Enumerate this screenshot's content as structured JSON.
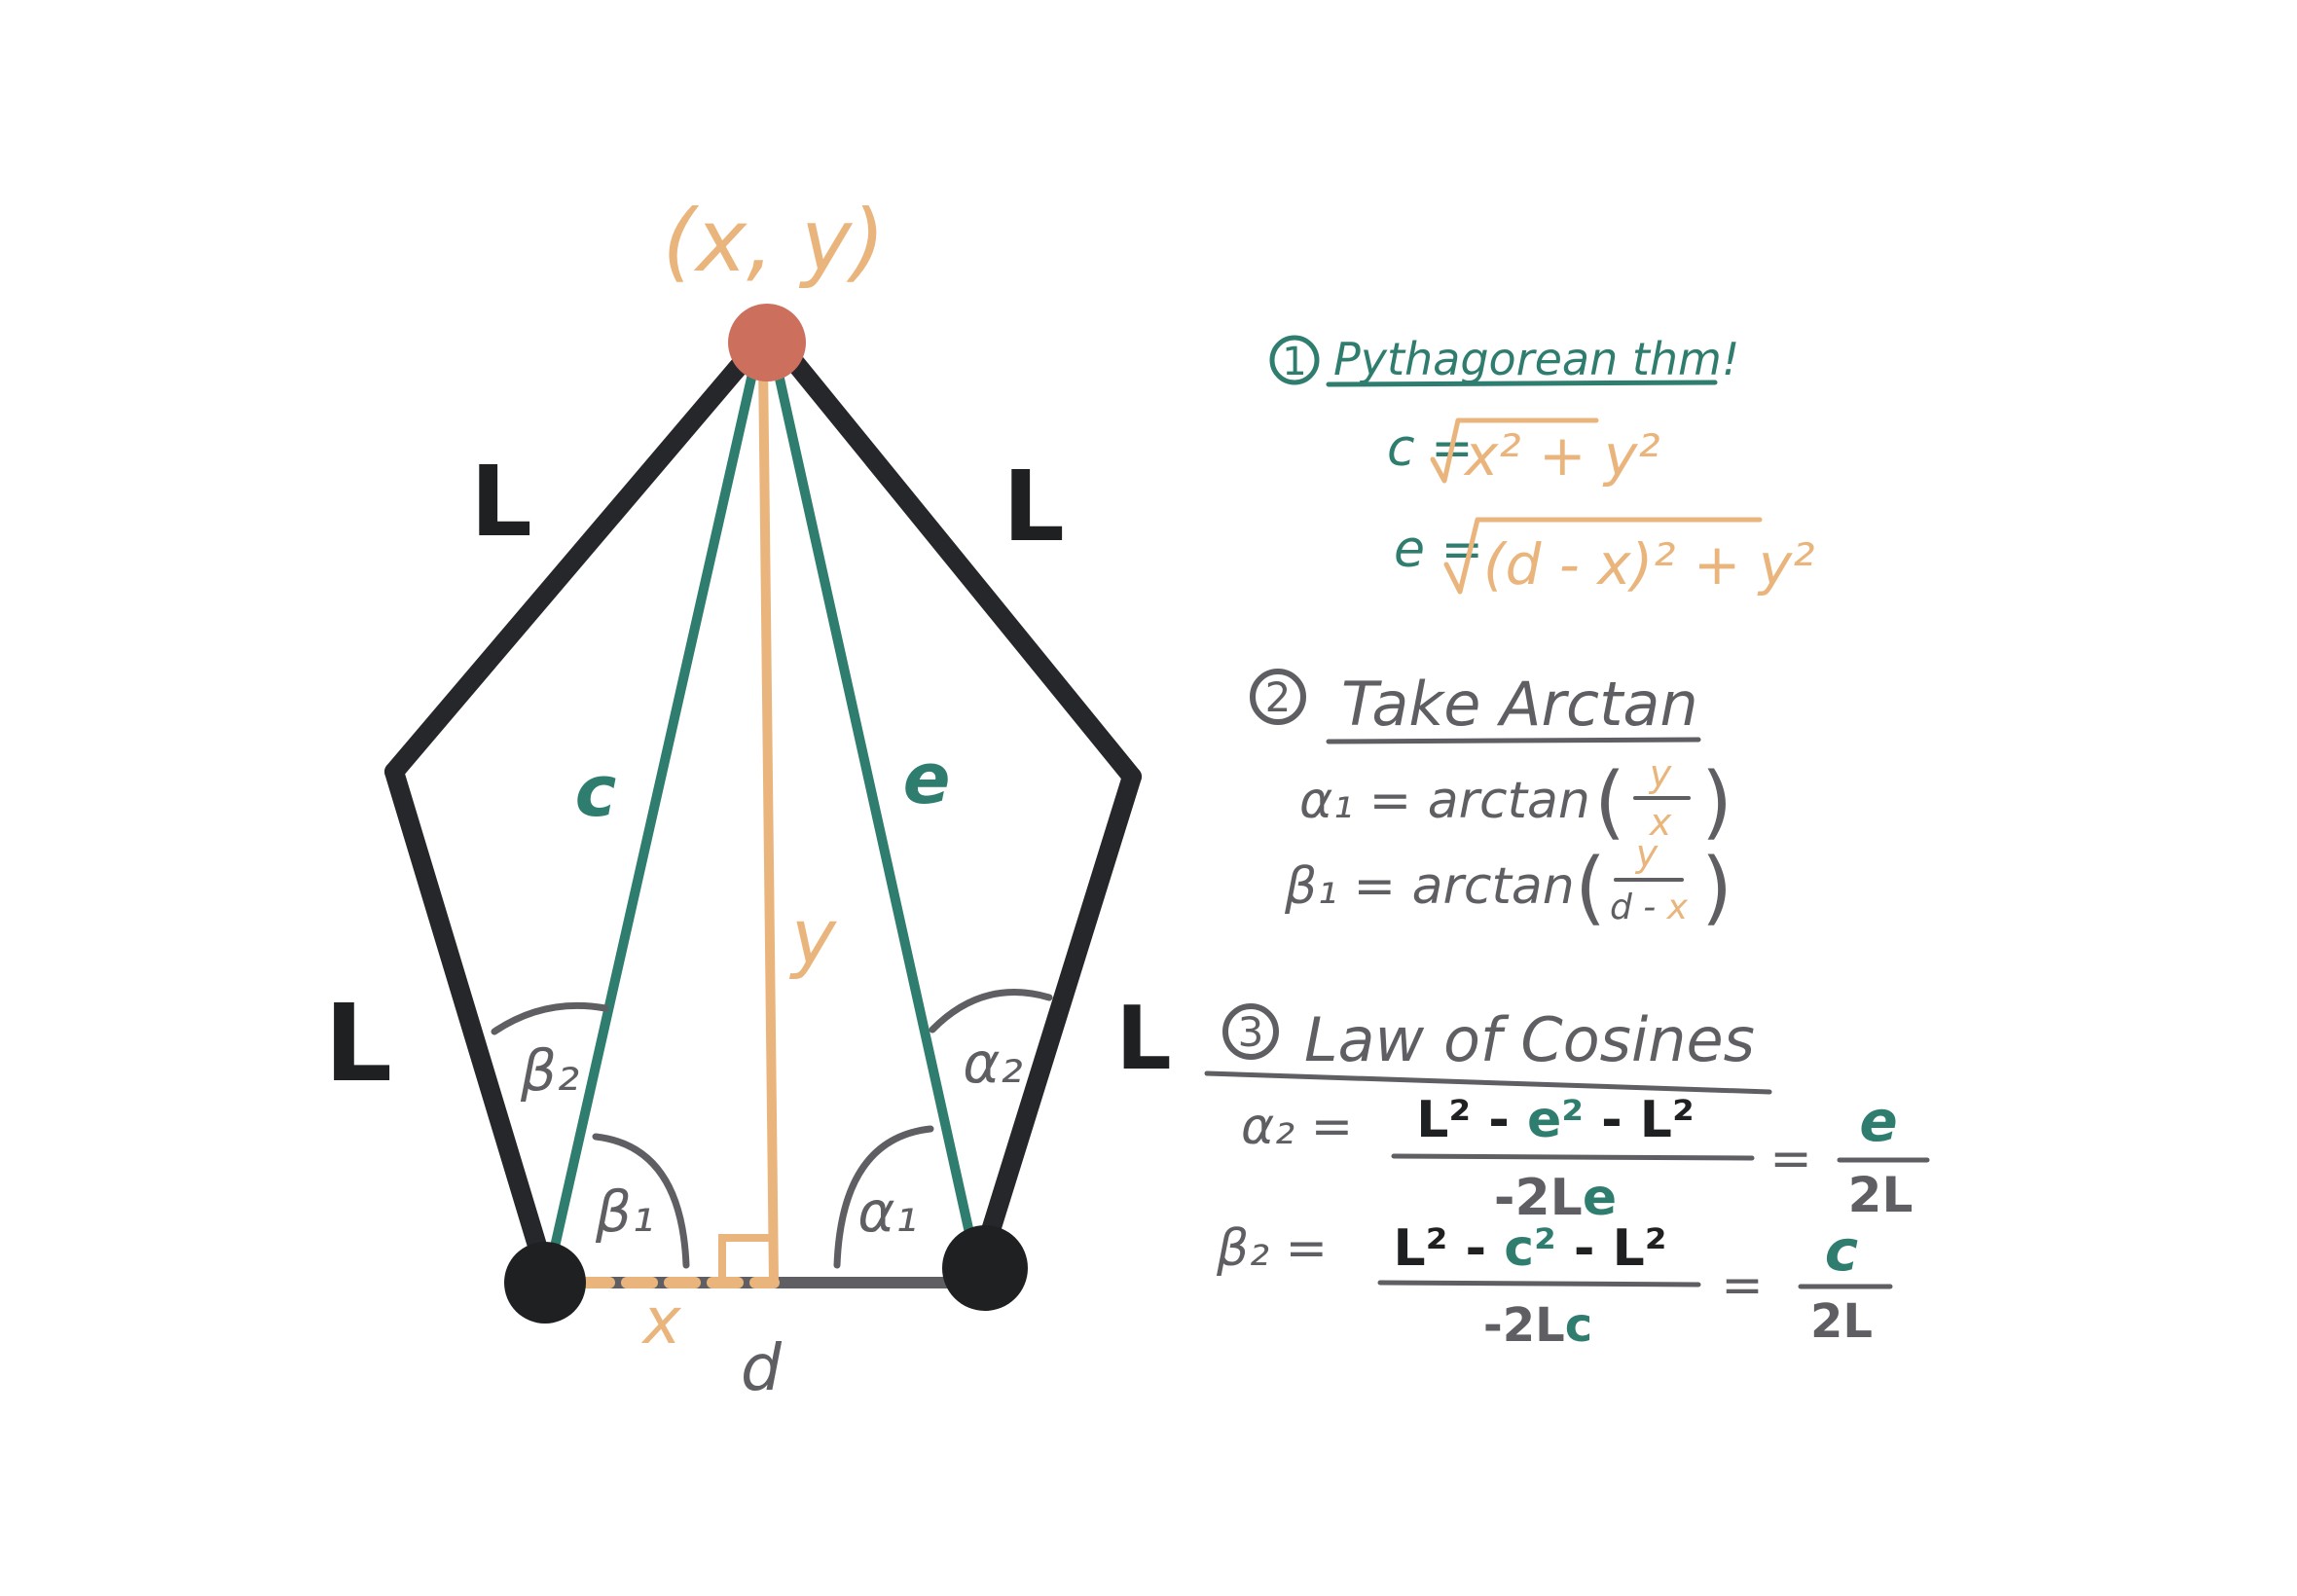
{
  "colors": {
    "link": "#26272a",
    "green": "#2f7d6e",
    "tan": "#e9b57c",
    "gray": "#5f5f63",
    "endpoint": "#cc6f5d",
    "joint": "#1f2022"
  },
  "diagram": {
    "endpoint_label": "(x, y)",
    "link_left_top": "L",
    "link_right_top": "L",
    "link_left_bottom": "L",
    "link_right_bottom": "L",
    "c_label": "c",
    "e_label": "e",
    "y_label": "y",
    "x_label": "x",
    "d_label": "d",
    "beta1": "β₁",
    "beta2": "β₂",
    "alpha1": "α₁",
    "alpha2": "α₂"
  },
  "notes": {
    "step1": {
      "number": "1",
      "title": "Pythagorean thm!",
      "c_lhs": "c =",
      "c_rhs": "x² + y²",
      "e_lhs": "e =",
      "e_rhs": "(d - x)² + y²"
    },
    "step2": {
      "number": "2",
      "title": "Take Arctan",
      "alpha1_lhs": "α₁ = arctan",
      "alpha1_num": "y",
      "alpha1_den": "x",
      "beta1_lhs": "β₁ = arctan",
      "beta1_num": "y",
      "beta1_den_a": "d - ",
      "beta1_den_b": "x"
    },
    "step3": {
      "number": "3",
      "title": "Law of Cosines",
      "alpha2_lhs": "α₂ =",
      "alpha2_num_a": "L² - ",
      "alpha2_num_b": "e²",
      "alpha2_num_c": " - L²",
      "alpha2_den_a": "-2L",
      "alpha2_den_b": "e",
      "alpha2_eq": "=",
      "alpha2_res_num": "e",
      "alpha2_res_den": "2L",
      "beta2_lhs": "β₂ =",
      "beta2_num_a": "L² - ",
      "beta2_num_b": "c²",
      "beta2_num_c": " - L²",
      "beta2_den_a": "-2L",
      "beta2_den_b": "c",
      "beta2_eq": "=",
      "beta2_res_num": "c",
      "beta2_res_den": "2L"
    }
  }
}
